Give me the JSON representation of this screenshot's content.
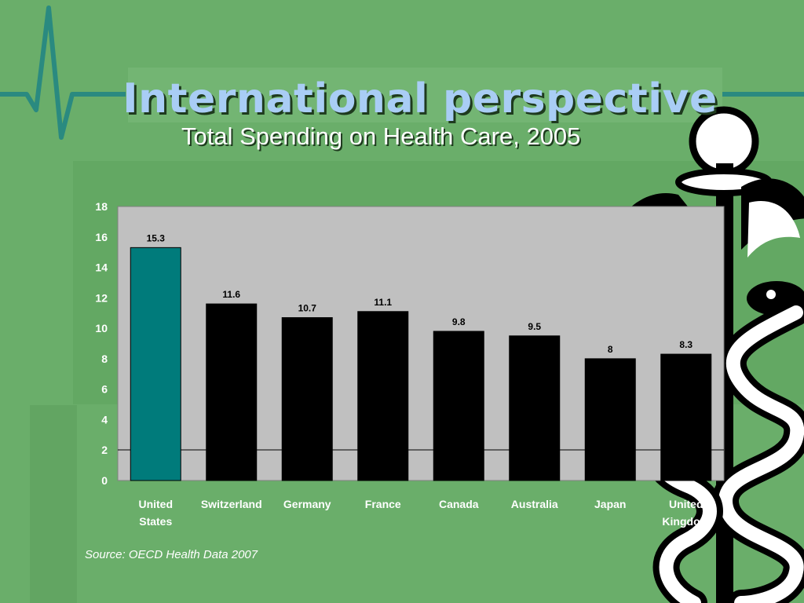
{
  "slide": {
    "title": "International perspective",
    "subtitle": "Total Spending on Health Care, 2005",
    "source": "Source:  OECD Health Data 2007"
  },
  "colors": {
    "background": "#6aae6a",
    "plot_area": "#c0c0c0",
    "highlight_bar": "#007b7b",
    "bar": "#000000",
    "title": "#a9cdf5",
    "heartbeat_line": "#2a8a80"
  },
  "icons": [
    "heartbeat-line-icon",
    "caduceus-icon"
  ],
  "chart_data": {
    "type": "bar",
    "title": "",
    "xlabel": "",
    "ylabel": "",
    "ylim": [
      0,
      18
    ],
    "yticks": [
      0,
      2,
      4,
      6,
      8,
      10,
      12,
      14,
      16,
      18
    ],
    "grid": false,
    "categories": [
      "United States",
      "Switzerland",
      "Germany",
      "France",
      "Canada",
      "Australia",
      "Japan",
      "United Kingdom"
    ],
    "category_lines": [
      [
        "United",
        "States"
      ],
      [
        "Switzerland"
      ],
      [
        "Germany"
      ],
      [
        "France"
      ],
      [
        "Canada"
      ],
      [
        "Australia"
      ],
      [
        "Japan"
      ],
      [
        "United",
        "Kingdom"
      ]
    ],
    "values": [
      15.3,
      11.6,
      10.7,
      11.1,
      9.8,
      9.5,
      8,
      8.3
    ],
    "value_labels": [
      "15.3",
      "11.6",
      "10.7",
      "11.1",
      "9.8",
      "9.5",
      "8",
      "8.3"
    ],
    "highlight_category": "United States"
  }
}
